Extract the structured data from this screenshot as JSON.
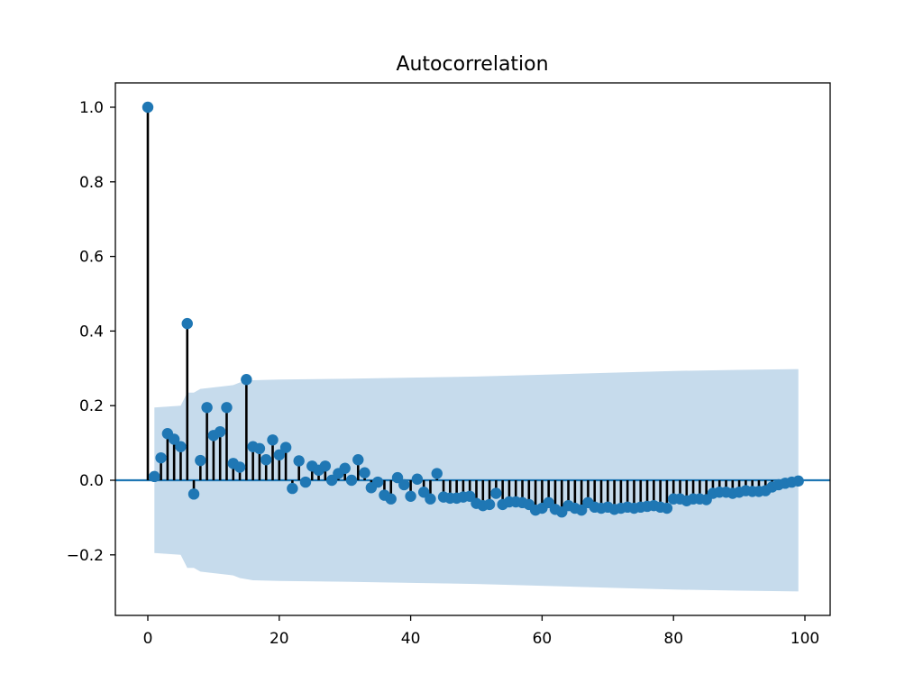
{
  "figure": {
    "title": "Autocorrelation"
  },
  "colors": {
    "marker": "#1f77b4",
    "stem": "#000000",
    "band": "#c6dbec",
    "zero_line": "#1f77b4"
  },
  "chart_data": {
    "type": "stem",
    "title": "Autocorrelation",
    "xlabel": "",
    "ylabel": "",
    "xlim": [
      -5,
      104
    ],
    "ylim": [
      -0.36,
      1.06
    ],
    "xticks": [
      0,
      20,
      40,
      60,
      80,
      100
    ],
    "yticks": [
      -0.2,
      0.0,
      0.2,
      0.4,
      0.6,
      0.8,
      1.0
    ],
    "xtick_labels": [
      "0",
      "20",
      "40",
      "60",
      "80",
      "100"
    ],
    "ytick_labels": [
      "−0.2",
      "0.0",
      "0.2",
      "0.4",
      "0.6",
      "0.8",
      "1.0"
    ],
    "grid": false,
    "legend": null,
    "lags": [
      0,
      1,
      2,
      3,
      4,
      5,
      6,
      7,
      8,
      9,
      10,
      11,
      12,
      13,
      14,
      15,
      16,
      17,
      18,
      19,
      20,
      21,
      22,
      23,
      24,
      25,
      26,
      27,
      28,
      29,
      30,
      31,
      32,
      33,
      34,
      35,
      36,
      37,
      38,
      39,
      40,
      41,
      42,
      43,
      44,
      45,
      46,
      47,
      48,
      49,
      50,
      51,
      52,
      53,
      54,
      55,
      56,
      57,
      58,
      59,
      60,
      61,
      62,
      63,
      64,
      65,
      66,
      67,
      68,
      69,
      70,
      71,
      72,
      73,
      74,
      75,
      76,
      77,
      78,
      79,
      80,
      81,
      82,
      83,
      84,
      85,
      86,
      87,
      88,
      89,
      90,
      91,
      92,
      93,
      94,
      95,
      96,
      97,
      98,
      99
    ],
    "acf": [
      1.0,
      0.01,
      0.06,
      0.125,
      0.11,
      0.09,
      0.42,
      -0.037,
      0.053,
      0.195,
      0.12,
      0.13,
      0.195,
      0.045,
      0.035,
      0.27,
      0.09,
      0.085,
      0.055,
      0.108,
      0.068,
      0.088,
      -0.022,
      0.052,
      -0.005,
      0.038,
      0.027,
      0.038,
      0.0,
      0.018,
      0.032,
      0.0,
      0.055,
      0.02,
      -0.02,
      -0.005,
      -0.04,
      -0.05,
      0.007,
      -0.012,
      -0.043,
      0.003,
      -0.032,
      -0.05,
      0.018,
      -0.045,
      -0.048,
      -0.048,
      -0.045,
      -0.043,
      -0.062,
      -0.068,
      -0.065,
      -0.035,
      -0.065,
      -0.058,
      -0.058,
      -0.06,
      -0.065,
      -0.08,
      -0.075,
      -0.06,
      -0.078,
      -0.085,
      -0.068,
      -0.075,
      -0.08,
      -0.06,
      -0.072,
      -0.075,
      -0.072,
      -0.078,
      -0.075,
      -0.072,
      -0.075,
      -0.072,
      -0.07,
      -0.068,
      -0.072,
      -0.075,
      -0.05,
      -0.05,
      -0.055,
      -0.05,
      -0.05,
      -0.052,
      -0.035,
      -0.032,
      -0.032,
      -0.035,
      -0.032,
      -0.028,
      -0.03,
      -0.03,
      -0.028,
      -0.018,
      -0.012,
      -0.008,
      -0.005,
      -0.002
    ],
    "confidence_band": {
      "lags": [
        1,
        5,
        6,
        7,
        8,
        13,
        14,
        15,
        16,
        20,
        30,
        40,
        50,
        60,
        70,
        80,
        90,
        99
      ],
      "upper": [
        0.195,
        0.2,
        0.235,
        0.235,
        0.245,
        0.255,
        0.262,
        0.265,
        0.268,
        0.27,
        0.272,
        0.275,
        0.278,
        0.283,
        0.288,
        0.293,
        0.296,
        0.298
      ],
      "lower": [
        -0.195,
        -0.2,
        -0.235,
        -0.235,
        -0.245,
        -0.255,
        -0.262,
        -0.265,
        -0.268,
        -0.27,
        -0.272,
        -0.275,
        -0.278,
        -0.283,
        -0.288,
        -0.293,
        -0.296,
        -0.298
      ]
    }
  }
}
